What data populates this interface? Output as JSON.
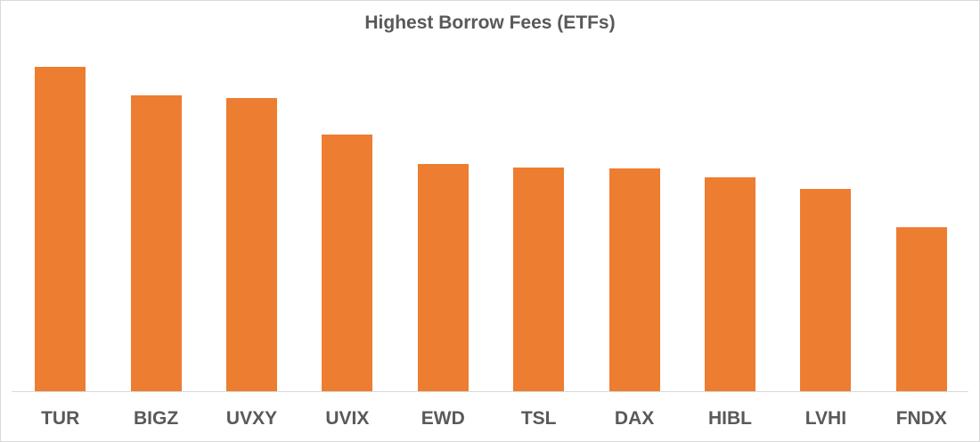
{
  "chart_data": {
    "type": "bar",
    "title": "Highest Borrow Fees (ETFs)",
    "xlabel": "",
    "ylabel": "",
    "y_axis_visible": false,
    "grid": false,
    "legend": null,
    "bar_color": "#ed7d31",
    "value_units": "relative height (px above baseline; no y-axis shown)",
    "categories": [
      "TUR",
      "BIGZ",
      "UVXY",
      "UVIX",
      "EWD",
      "TSL",
      "DAX",
      "HIBL",
      "LVHI",
      "FNDX"
    ],
    "values": [
      364,
      332,
      329,
      288,
      255,
      251,
      250,
      240,
      227,
      184
    ],
    "ylim": [
      0,
      380
    ]
  },
  "colors": {
    "bar": "#ed7d31",
    "text": "#595959",
    "axis": "#d9d9d9"
  }
}
